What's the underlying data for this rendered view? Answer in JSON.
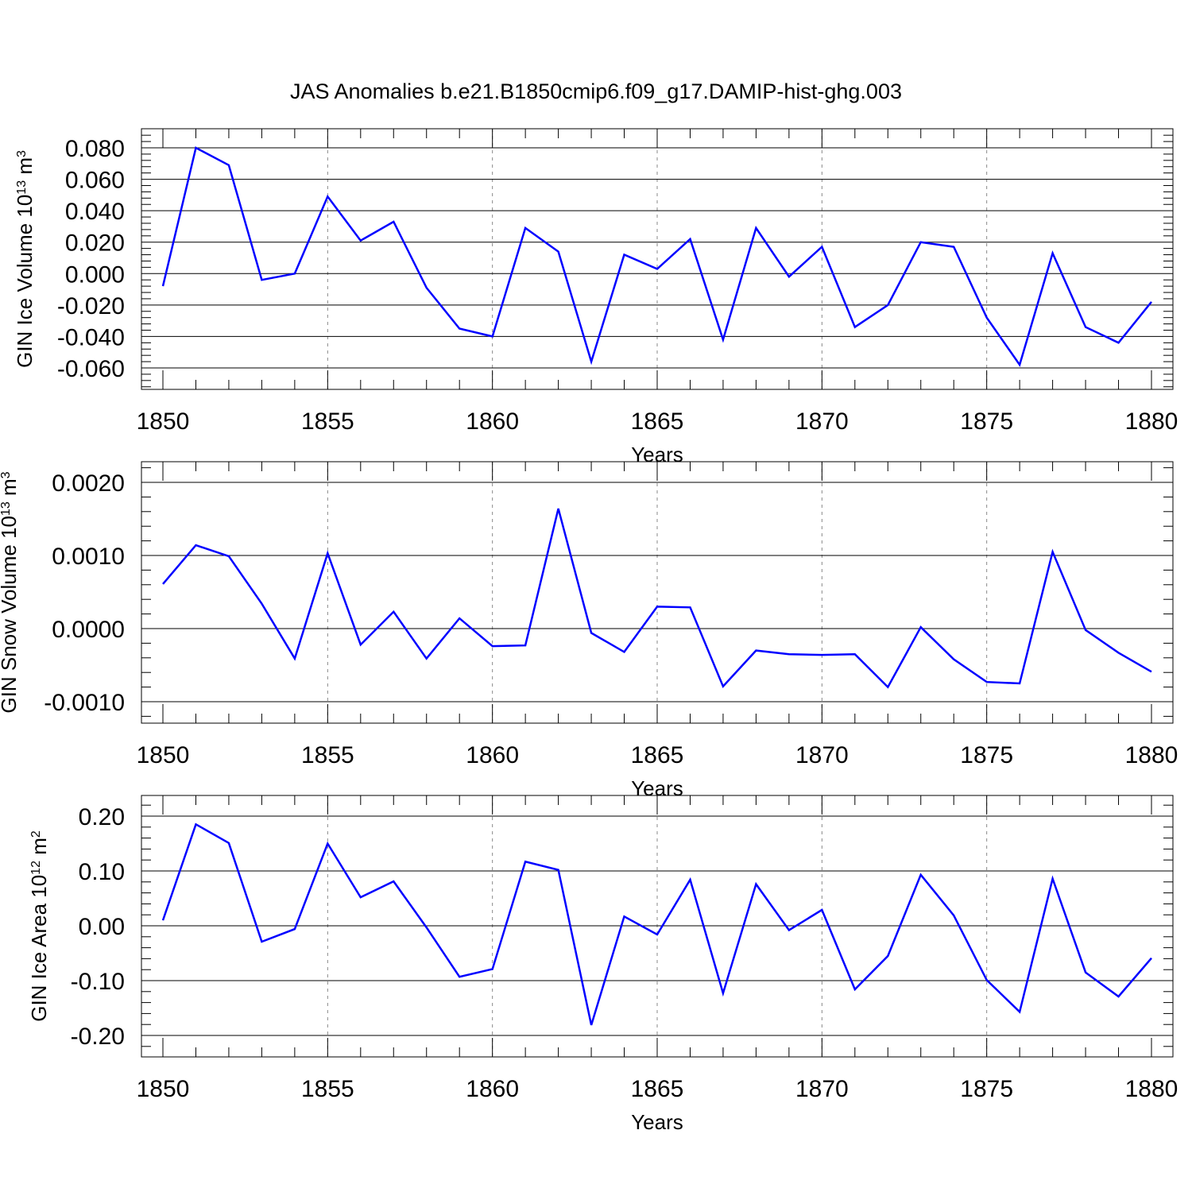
{
  "title": "JAS Anomalies b.e21.B1850cmip6.f09_g17.DAMIP-hist-ghg.003",
  "line_color": "#0000ff",
  "chart_data": [
    {
      "type": "line",
      "xlabel": "Years",
      "ylabel_text": "GIN Ice Volume 10",
      "ylabel_exp": "13",
      "ylabel_unit": "m",
      "ylabel_unit_exp": "3",
      "xlim": [
        1850,
        1880
      ],
      "ylim": [
        -0.06,
        0.08
      ],
      "xticks": [
        "1850",
        "1855",
        "1860",
        "1865",
        "1870",
        "1875",
        "1880"
      ],
      "yticks": [
        "-0.060",
        "-0.040",
        "-0.020",
        "0.000",
        "0.020",
        "0.040",
        "0.060",
        "0.080"
      ],
      "x": [
        1850,
        1851,
        1852,
        1853,
        1854,
        1855,
        1856,
        1857,
        1858,
        1859,
        1860,
        1861,
        1862,
        1863,
        1864,
        1865,
        1866,
        1867,
        1868,
        1869,
        1870,
        1871,
        1872,
        1873,
        1874,
        1875,
        1876,
        1877,
        1878,
        1879,
        1880
      ],
      "y": [
        -0.008,
        0.08,
        0.069,
        -0.004,
        0.0,
        0.049,
        0.021,
        0.033,
        -0.009,
        -0.035,
        -0.04,
        0.029,
        0.014,
        -0.056,
        0.012,
        0.003,
        0.022,
        -0.042,
        0.029,
        -0.002,
        0.017,
        -0.034,
        -0.02,
        0.02,
        0.017,
        -0.028,
        -0.058,
        0.013,
        -0.034,
        -0.044,
        -0.018
      ]
    },
    {
      "type": "line",
      "xlabel": "Years",
      "ylabel_text": "GIN Snow Volume 10",
      "ylabel_exp": "13",
      "ylabel_unit": "m",
      "ylabel_unit_exp": "3",
      "xlim": [
        1850,
        1880
      ],
      "ylim": [
        -0.001,
        0.002
      ],
      "xticks": [
        "1850",
        "1855",
        "1860",
        "1865",
        "1870",
        "1875",
        "1880"
      ],
      "yticks": [
        "-0.0010",
        "0.0000",
        "0.0010",
        "0.0020"
      ],
      "x": [
        1850,
        1851,
        1852,
        1853,
        1854,
        1855,
        1856,
        1857,
        1858,
        1859,
        1860,
        1861,
        1862,
        1863,
        1864,
        1865,
        1866,
        1867,
        1868,
        1869,
        1870,
        1871,
        1872,
        1873,
        1874,
        1875,
        1876,
        1877,
        1878,
        1879,
        1880
      ],
      "y": [
        0.00061,
        0.00114,
        0.00099,
        0.00034,
        -0.00041,
        0.00103,
        -0.00022,
        0.00023,
        -0.00041,
        0.00014,
        -0.00024,
        -0.00023,
        0.00164,
        -6e-05,
        -0.00032,
        0.0003,
        0.00029,
        -0.00079,
        -0.0003,
        -0.00035,
        -0.00036,
        -0.00035,
        -0.0008,
        2e-05,
        -0.00042,
        -0.00073,
        -0.00075,
        0.00105,
        -2e-05,
        -0.00033,
        -0.00059
      ]
    },
    {
      "type": "line",
      "xlabel": "Years",
      "ylabel_text": "GIN Ice Area 10",
      "ylabel_exp": "12",
      "ylabel_unit": "m",
      "ylabel_unit_exp": "2",
      "xlim": [
        1850,
        1880
      ],
      "ylim": [
        -0.2,
        0.2
      ],
      "xticks": [
        "1850",
        "1855",
        "1860",
        "1865",
        "1870",
        "1875",
        "1880"
      ],
      "yticks": [
        "-0.20",
        "-0.10",
        "0.00",
        "0.10",
        "0.20"
      ],
      "x": [
        1850,
        1851,
        1852,
        1853,
        1854,
        1855,
        1856,
        1857,
        1858,
        1859,
        1860,
        1861,
        1862,
        1863,
        1864,
        1865,
        1866,
        1867,
        1868,
        1869,
        1870,
        1871,
        1872,
        1873,
        1874,
        1875,
        1876,
        1877,
        1878,
        1879,
        1880
      ],
      "y": [
        0.01,
        0.185,
        0.151,
        -0.029,
        -0.006,
        0.15,
        0.052,
        0.081,
        -0.003,
        -0.093,
        -0.079,
        0.117,
        0.102,
        -0.181,
        0.017,
        -0.016,
        0.084,
        -0.123,
        0.076,
        -0.008,
        0.029,
        -0.116,
        -0.055,
        0.093,
        0.019,
        -0.099,
        -0.157,
        0.086,
        -0.085,
        -0.129,
        -0.059
      ]
    }
  ]
}
